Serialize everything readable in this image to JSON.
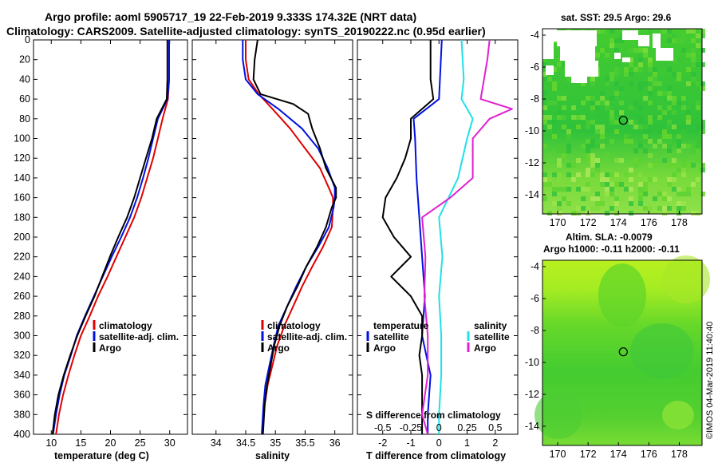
{
  "header": {
    "title_line1": "Argo profile: aoml 5905717_19 22-Feb-2019 9.333S 174.32E (NRT data)",
    "title_line2": "Climatology: CARS2009. Satellite-adjusted climatology: synTS_20190222.nc (0.95d earlier)"
  },
  "colors": {
    "climatology": "#e00000",
    "satellite": "#0010e0",
    "argo": "#000000",
    "sat_salinity": "#20e0e8",
    "argo_salinity": "#e020d0",
    "map_green": "#33cc33"
  },
  "chart_data": [
    {
      "type": "line",
      "title": "",
      "xlabel": "temperature (deg C)",
      "ylabel": "",
      "xlim": [
        7,
        33
      ],
      "ylim": [
        0,
        400
      ],
      "xticks": [
        10,
        15,
        20,
        25,
        30
      ],
      "yticks": [
        0,
        20,
        40,
        60,
        80,
        100,
        120,
        140,
        160,
        180,
        200,
        220,
        240,
        260,
        280,
        300,
        320,
        340,
        360,
        380,
        400
      ],
      "legend": [
        "climatology",
        "satellite-adj. clim.",
        "Argo"
      ],
      "series": [
        {
          "name": "climatology",
          "depth": [
            0,
            40,
            60,
            80,
            100,
            120,
            140,
            160,
            180,
            200,
            220,
            240,
            260,
            280,
            300,
            320,
            340,
            360,
            380,
            400
          ],
          "values": [
            29.9,
            29.9,
            29.7,
            28.8,
            28.0,
            27.2,
            26.2,
            25.2,
            24.0,
            22.5,
            21.0,
            19.5,
            17.9,
            16.5,
            15.0,
            13.9,
            12.9,
            12.0,
            11.3,
            10.8
          ]
        },
        {
          "name": "satellite-adj. clim.",
          "depth": [
            0,
            40,
            60,
            80,
            100,
            120,
            140,
            160,
            180,
            200,
            220,
            240,
            260,
            280,
            300,
            320,
            340,
            360,
            380,
            400
          ],
          "values": [
            29.9,
            29.9,
            29.6,
            28.0,
            27.2,
            26.4,
            25.5,
            24.5,
            23.3,
            21.8,
            20.2,
            18.7,
            17.2,
            15.7,
            14.3,
            13.3,
            12.2,
            11.4,
            10.8,
            10.3
          ]
        },
        {
          "name": "Argo",
          "depth": [
            0,
            40,
            60,
            80,
            100,
            120,
            140,
            160,
            180,
            200,
            220,
            240,
            260,
            280,
            300,
            320,
            340,
            360,
            380,
            400
          ],
          "values": [
            29.6,
            29.6,
            29.5,
            27.8,
            27.0,
            26.0,
            25.0,
            24.0,
            22.8,
            21.3,
            19.9,
            18.6,
            17.3,
            15.8,
            14.4,
            13.2,
            12.1,
            11.2,
            10.6,
            10.2
          ]
        }
      ]
    },
    {
      "type": "line",
      "title": "",
      "xlabel": "salinity",
      "ylabel": "",
      "xlim": [
        33.6,
        36.3
      ],
      "ylim": [
        0,
        400
      ],
      "xticks": [
        34,
        34.5,
        35,
        35.5,
        36
      ],
      "legend": [
        "climatology",
        "satellite-adj. clim.",
        "Argo"
      ],
      "series": [
        {
          "name": "climatology",
          "depth": [
            0,
            20,
            40,
            55,
            70,
            90,
            110,
            130,
            150,
            160,
            170,
            190,
            210,
            230,
            250,
            270,
            290,
            310,
            330,
            350,
            370,
            400
          ],
          "values": [
            34.5,
            34.5,
            34.55,
            34.72,
            34.95,
            35.25,
            35.5,
            35.75,
            35.9,
            35.97,
            35.97,
            35.95,
            35.8,
            35.62,
            35.45,
            35.3,
            35.15,
            35.03,
            34.95,
            34.87,
            34.82,
            34.78
          ]
        },
        {
          "name": "satellite-adj. clim.",
          "depth": [
            0,
            20,
            40,
            55,
            70,
            90,
            110,
            130,
            150,
            160,
            170,
            190,
            210,
            230,
            250,
            270,
            290,
            310,
            330,
            350,
            370,
            400
          ],
          "values": [
            34.45,
            34.45,
            34.5,
            34.7,
            35.05,
            35.45,
            35.72,
            35.88,
            36.0,
            36.0,
            35.98,
            35.9,
            35.72,
            35.52,
            35.35,
            35.2,
            35.05,
            34.97,
            34.9,
            34.83,
            34.8,
            34.77
          ]
        },
        {
          "name": "Argo",
          "depth": [
            0,
            20,
            40,
            55,
            65,
            75,
            90,
            110,
            130,
            150,
            160,
            170,
            190,
            210,
            230,
            250,
            270,
            290,
            310,
            330,
            350,
            370,
            400
          ],
          "values": [
            34.7,
            34.65,
            34.63,
            34.75,
            35.3,
            35.55,
            35.62,
            35.75,
            35.85,
            36.02,
            36.02,
            35.95,
            35.85,
            35.7,
            35.52,
            35.37,
            35.2,
            35.07,
            34.98,
            34.92,
            34.86,
            34.82,
            34.79
          ]
        }
      ]
    },
    {
      "type": "line",
      "title": "",
      "xlabel": "T difference from climatology",
      "xlabel2": "S difference from climatology",
      "ylabel": "",
      "xlim": [
        -2.9,
        2.8
      ],
      "ylim": [
        0,
        400
      ],
      "xticks": [
        -2,
        -1,
        0,
        1,
        2
      ],
      "xticks_s": [
        "-0.5",
        "-0.25",
        "0",
        "0.25",
        "0.5"
      ],
      "legend_temperature_header": "temperature",
      "legend_salinity_header": "salinity",
      "legend": [
        "satellite",
        "Argo",
        "satellite",
        "Argo"
      ],
      "series": [
        {
          "name": "temperature satellite",
          "depth": [
            0,
            60,
            80,
            100,
            140,
            180,
            220,
            260,
            300,
            340,
            380,
            400
          ],
          "values": [
            0.1,
            0.0,
            -0.9,
            -0.85,
            -0.8,
            -0.7,
            -0.6,
            -0.5,
            -0.6,
            -0.3,
            -0.4,
            -0.4
          ]
        },
        {
          "name": "temperature Argo",
          "depth": [
            0,
            40,
            60,
            80,
            100,
            120,
            140,
            160,
            180,
            200,
            220,
            240,
            260,
            280,
            300,
            320,
            340,
            360,
            380,
            400
          ],
          "values": [
            -0.3,
            -0.3,
            -0.2,
            -1.0,
            -1.0,
            -1.2,
            -1.5,
            -1.9,
            -2.0,
            -1.6,
            -1.0,
            -1.7,
            -1.0,
            -0.6,
            -0.6,
            -0.7,
            -0.6,
            -0.6,
            -0.6,
            -0.6
          ]
        },
        {
          "name": "salinity satellite",
          "depth": [
            0,
            40,
            60,
            80,
            100,
            140,
            180,
            220,
            260,
            300,
            340,
            380,
            400
          ],
          "values": [
            0.2,
            0.22,
            0.2,
            0.3,
            0.25,
            0.17,
            0.0,
            0.03,
            0.0,
            0.02,
            0.02,
            0.0,
            0.0
          ]
        },
        {
          "name": "salinity Argo",
          "depth": [
            0,
            20,
            40,
            60,
            70,
            80,
            100,
            140,
            160,
            180,
            220,
            260,
            300,
            340,
            380,
            400
          ],
          "values": [
            0.45,
            0.43,
            0.4,
            0.37,
            0.65,
            0.45,
            0.3,
            0.3,
            0.1,
            -0.15,
            -0.12,
            -0.13,
            -0.1,
            -0.1,
            -0.15,
            -0.1
          ]
        }
      ]
    },
    {
      "type": "heatmap",
      "title": "sat. SST: 29.5 Argo: 29.6",
      "xticks": [
        170,
        172,
        174,
        176,
        178
      ],
      "yticks": [
        -4,
        -6,
        -8,
        -10,
        -12,
        -14
      ],
      "xlim": [
        169,
        179.5
      ],
      "ylim": [
        -15.2,
        -3.6
      ],
      "marker": {
        "lon": 174.32,
        "lat": -9.333
      }
    },
    {
      "type": "heatmap",
      "title": "Altim. SLA: -0.0079",
      "subtitle": "Argo h1000: -0.11 h2000: -0.11",
      "xticks": [
        170,
        172,
        174,
        176,
        178
      ],
      "yticks": [
        -4,
        -6,
        -8,
        -10,
        -12,
        -14
      ],
      "xlim": [
        169,
        179.5
      ],
      "ylim": [
        -15.2,
        -3.6
      ],
      "marker": {
        "lon": 174.32,
        "lat": -9.333
      }
    }
  ],
  "credit": "©IMOS 04-Mar-2019 11:40:40"
}
